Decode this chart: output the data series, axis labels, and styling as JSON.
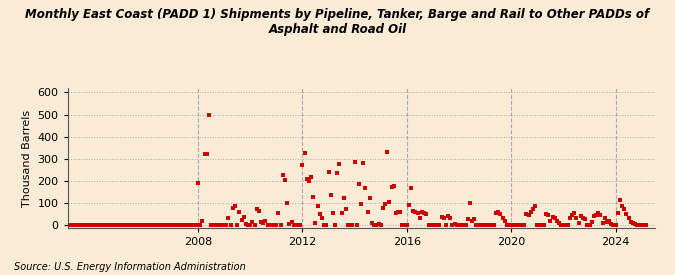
{
  "title": "Monthly East Coast (PADD 1) Shipments by Pipeline, Tanker, Barge and Rail to Other PADDs of\nAsphalt and Road Oil",
  "ylabel": "Thousand Barrels",
  "source": "Source: U.S. Energy Information Administration",
  "background_color": "#faebd7",
  "plot_bg_color": "#faebd7",
  "marker_color": "#cc0000",
  "marker_size": 12,
  "marker": "s",
  "ylim": [
    -15,
    620
  ],
  "yticks": [
    0,
    100,
    200,
    300,
    400,
    500,
    600
  ],
  "grid_color": "#aaaaaa",
  "grid_style": ":",
  "vline_color": "#aaaaaa",
  "vline_style": "--",
  "xtick_years": [
    2008,
    2012,
    2016,
    2020,
    2024
  ],
  "x_start_year": 2003.0,
  "x_end_year": 2025.5,
  "data_points": [
    [
      2003.0,
      0
    ],
    [
      2003.083,
      0
    ],
    [
      2003.167,
      0
    ],
    [
      2003.25,
      0
    ],
    [
      2003.333,
      0
    ],
    [
      2003.417,
      0
    ],
    [
      2003.5,
      0
    ],
    [
      2003.583,
      0
    ],
    [
      2003.667,
      0
    ],
    [
      2003.75,
      0
    ],
    [
      2003.833,
      0
    ],
    [
      2003.917,
      0
    ],
    [
      2004.0,
      0
    ],
    [
      2004.083,
      0
    ],
    [
      2004.167,
      0
    ],
    [
      2004.25,
      0
    ],
    [
      2004.333,
      0
    ],
    [
      2004.417,
      0
    ],
    [
      2004.5,
      0
    ],
    [
      2004.583,
      0
    ],
    [
      2004.667,
      0
    ],
    [
      2004.75,
      0
    ],
    [
      2004.833,
      0
    ],
    [
      2004.917,
      0
    ],
    [
      2005.0,
      0
    ],
    [
      2005.083,
      0
    ],
    [
      2005.167,
      0
    ],
    [
      2005.25,
      0
    ],
    [
      2005.333,
      0
    ],
    [
      2005.417,
      0
    ],
    [
      2005.5,
      0
    ],
    [
      2005.583,
      0
    ],
    [
      2005.667,
      0
    ],
    [
      2005.75,
      0
    ],
    [
      2005.833,
      0
    ],
    [
      2005.917,
      0
    ],
    [
      2006.0,
      0
    ],
    [
      2006.083,
      0
    ],
    [
      2006.167,
      0
    ],
    [
      2006.25,
      0
    ],
    [
      2006.333,
      0
    ],
    [
      2006.417,
      0
    ],
    [
      2006.5,
      0
    ],
    [
      2006.583,
      0
    ],
    [
      2006.667,
      0
    ],
    [
      2006.75,
      0
    ],
    [
      2006.833,
      0
    ],
    [
      2006.917,
      0
    ],
    [
      2007.0,
      0
    ],
    [
      2007.083,
      0
    ],
    [
      2007.167,
      0
    ],
    [
      2007.25,
      0
    ],
    [
      2007.333,
      0
    ],
    [
      2007.417,
      0
    ],
    [
      2007.5,
      0
    ],
    [
      2007.583,
      0
    ],
    [
      2007.667,
      0
    ],
    [
      2007.75,
      0
    ],
    [
      2007.833,
      0
    ],
    [
      2007.917,
      0
    ],
    [
      2008.0,
      189
    ],
    [
      2008.083,
      0
    ],
    [
      2008.167,
      18
    ],
    [
      2008.25,
      322
    ],
    [
      2008.333,
      319
    ],
    [
      2008.417,
      499
    ],
    [
      2008.5,
      0
    ],
    [
      2008.583,
      0
    ],
    [
      2008.667,
      0
    ],
    [
      2008.75,
      0
    ],
    [
      2008.833,
      0
    ],
    [
      2008.917,
      0
    ],
    [
      2009.0,
      0
    ],
    [
      2009.083,
      0
    ],
    [
      2009.167,
      30
    ],
    [
      2009.25,
      0
    ],
    [
      2009.333,
      75
    ],
    [
      2009.417,
      85
    ],
    [
      2009.5,
      0
    ],
    [
      2009.583,
      60
    ],
    [
      2009.667,
      23
    ],
    [
      2009.75,
      35
    ],
    [
      2009.833,
      5
    ],
    [
      2009.917,
      0
    ],
    [
      2010.0,
      0
    ],
    [
      2010.083,
      15
    ],
    [
      2010.167,
      0
    ],
    [
      2010.25,
      73
    ],
    [
      2010.333,
      65
    ],
    [
      2010.417,
      15
    ],
    [
      2010.5,
      8
    ],
    [
      2010.583,
      20
    ],
    [
      2010.667,
      0
    ],
    [
      2010.75,
      0
    ],
    [
      2010.833,
      0
    ],
    [
      2010.917,
      0
    ],
    [
      2011.0,
      0
    ],
    [
      2011.083,
      55
    ],
    [
      2011.167,
      0
    ],
    [
      2011.25,
      225
    ],
    [
      2011.333,
      205
    ],
    [
      2011.417,
      100
    ],
    [
      2011.5,
      5
    ],
    [
      2011.583,
      15
    ],
    [
      2011.667,
      0
    ],
    [
      2011.75,
      0
    ],
    [
      2011.833,
      0
    ],
    [
      2011.917,
      0
    ],
    [
      2012.0,
      270
    ],
    [
      2012.083,
      325
    ],
    [
      2012.167,
      210
    ],
    [
      2012.25,
      200
    ],
    [
      2012.333,
      215
    ],
    [
      2012.417,
      125
    ],
    [
      2012.5,
      10
    ],
    [
      2012.583,
      85
    ],
    [
      2012.667,
      50
    ],
    [
      2012.75,
      30
    ],
    [
      2012.833,
      0
    ],
    [
      2012.917,
      0
    ],
    [
      2013.0,
      240
    ],
    [
      2013.083,
      135
    ],
    [
      2013.167,
      55
    ],
    [
      2013.25,
      0
    ],
    [
      2013.333,
      235
    ],
    [
      2013.417,
      275
    ],
    [
      2013.5,
      55
    ],
    [
      2013.583,
      120
    ],
    [
      2013.667,
      70
    ],
    [
      2013.75,
      0
    ],
    [
      2013.833,
      0
    ],
    [
      2013.917,
      0
    ],
    [
      2014.0,
      285
    ],
    [
      2014.083,
      0
    ],
    [
      2014.167,
      185
    ],
    [
      2014.25,
      95
    ],
    [
      2014.333,
      280
    ],
    [
      2014.417,
      165
    ],
    [
      2014.5,
      60
    ],
    [
      2014.583,
      120
    ],
    [
      2014.667,
      10
    ],
    [
      2014.75,
      0
    ],
    [
      2014.833,
      0
    ],
    [
      2014.917,
      5
    ],
    [
      2015.0,
      0
    ],
    [
      2015.083,
      75
    ],
    [
      2015.167,
      95
    ],
    [
      2015.25,
      330
    ],
    [
      2015.333,
      105
    ],
    [
      2015.417,
      170
    ],
    [
      2015.5,
      175
    ],
    [
      2015.583,
      55
    ],
    [
      2015.667,
      60
    ],
    [
      2015.75,
      60
    ],
    [
      2015.833,
      0
    ],
    [
      2015.917,
      0
    ],
    [
      2016.0,
      0
    ],
    [
      2016.083,
      90
    ],
    [
      2016.167,
      165
    ],
    [
      2016.25,
      65
    ],
    [
      2016.333,
      60
    ],
    [
      2016.417,
      55
    ],
    [
      2016.5,
      30
    ],
    [
      2016.583,
      60
    ],
    [
      2016.667,
      55
    ],
    [
      2016.75,
      50
    ],
    [
      2016.833,
      0
    ],
    [
      2016.917,
      0
    ],
    [
      2017.0,
      0
    ],
    [
      2017.083,
      0
    ],
    [
      2017.167,
      0
    ],
    [
      2017.25,
      0
    ],
    [
      2017.333,
      35
    ],
    [
      2017.417,
      30
    ],
    [
      2017.5,
      0
    ],
    [
      2017.583,
      40
    ],
    [
      2017.667,
      30
    ],
    [
      2017.75,
      0
    ],
    [
      2017.833,
      5
    ],
    [
      2017.917,
      0
    ],
    [
      2018.0,
      0
    ],
    [
      2018.083,
      0
    ],
    [
      2018.167,
      0
    ],
    [
      2018.25,
      0
    ],
    [
      2018.333,
      25
    ],
    [
      2018.417,
      100
    ],
    [
      2018.5,
      20
    ],
    [
      2018.583,
      25
    ],
    [
      2018.667,
      0
    ],
    [
      2018.75,
      0
    ],
    [
      2018.833,
      0
    ],
    [
      2018.917,
      0
    ],
    [
      2019.0,
      0
    ],
    [
      2019.083,
      0
    ],
    [
      2019.167,
      0
    ],
    [
      2019.25,
      0
    ],
    [
      2019.333,
      0
    ],
    [
      2019.417,
      55
    ],
    [
      2019.5,
      60
    ],
    [
      2019.583,
      50
    ],
    [
      2019.667,
      30
    ],
    [
      2019.75,
      20
    ],
    [
      2019.833,
      0
    ],
    [
      2019.917,
      0
    ],
    [
      2020.0,
      0
    ],
    [
      2020.083,
      0
    ],
    [
      2020.167,
      0
    ],
    [
      2020.25,
      0
    ],
    [
      2020.333,
      0
    ],
    [
      2020.417,
      0
    ],
    [
      2020.5,
      0
    ],
    [
      2020.583,
      50
    ],
    [
      2020.667,
      45
    ],
    [
      2020.75,
      60
    ],
    [
      2020.833,
      70
    ],
    [
      2020.917,
      85
    ],
    [
      2021.0,
      0
    ],
    [
      2021.083,
      0
    ],
    [
      2021.167,
      0
    ],
    [
      2021.25,
      0
    ],
    [
      2021.333,
      50
    ],
    [
      2021.417,
      45
    ],
    [
      2021.5,
      20
    ],
    [
      2021.583,
      35
    ],
    [
      2021.667,
      30
    ],
    [
      2021.75,
      20
    ],
    [
      2021.833,
      10
    ],
    [
      2021.917,
      0
    ],
    [
      2022.0,
      0
    ],
    [
      2022.083,
      0
    ],
    [
      2022.167,
      0
    ],
    [
      2022.25,
      30
    ],
    [
      2022.333,
      45
    ],
    [
      2022.417,
      55
    ],
    [
      2022.5,
      30
    ],
    [
      2022.583,
      10
    ],
    [
      2022.667,
      40
    ],
    [
      2022.75,
      30
    ],
    [
      2022.833,
      25
    ],
    [
      2022.917,
      0
    ],
    [
      2023.0,
      0
    ],
    [
      2023.083,
      15
    ],
    [
      2023.167,
      40
    ],
    [
      2023.25,
      45
    ],
    [
      2023.333,
      55
    ],
    [
      2023.417,
      45
    ],
    [
      2023.5,
      10
    ],
    [
      2023.583,
      30
    ],
    [
      2023.667,
      15
    ],
    [
      2023.75,
      20
    ],
    [
      2023.833,
      5
    ],
    [
      2023.917,
      0
    ],
    [
      2024.0,
      0
    ],
    [
      2024.083,
      55
    ],
    [
      2024.167,
      115
    ],
    [
      2024.25,
      85
    ],
    [
      2024.333,
      70
    ],
    [
      2024.417,
      50
    ],
    [
      2024.5,
      30
    ],
    [
      2024.583,
      15
    ],
    [
      2024.667,
      10
    ],
    [
      2024.75,
      5
    ],
    [
      2024.833,
      0
    ],
    [
      2024.917,
      0
    ],
    [
      2025.0,
      0
    ],
    [
      2025.083,
      0
    ],
    [
      2025.167,
      0
    ]
  ]
}
